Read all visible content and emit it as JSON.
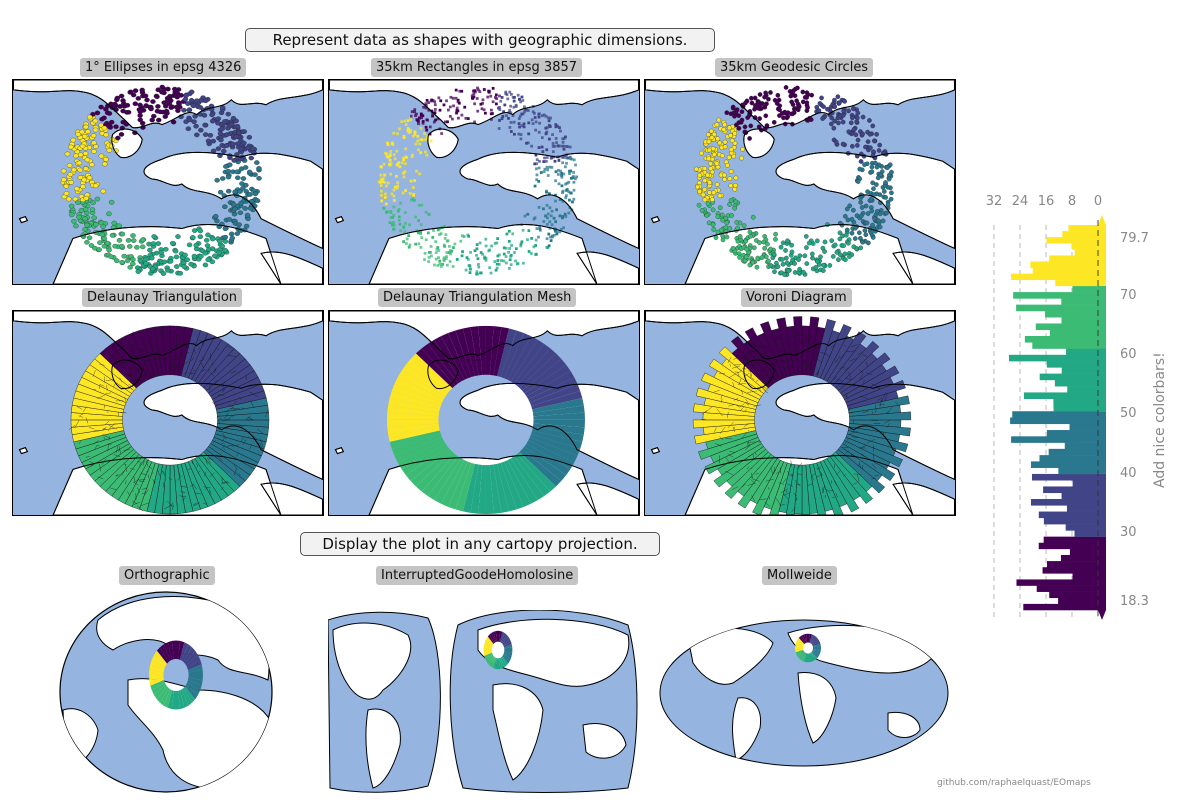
{
  "titles": {
    "main": "Represent data as shapes with geographic dimensions.",
    "projections": "Display the plot in any cartopy projection."
  },
  "panels": [
    {
      "title": "1° Ellipses in epsg 4326",
      "kind": "ellipses"
    },
    {
      "title": "35km Rectangles in epsg 3857",
      "kind": "rectangles"
    },
    {
      "title": "35km Geodesic Circles",
      "kind": "circles"
    },
    {
      "title": "Delaunay Triangulation",
      "kind": "delaunay"
    },
    {
      "title": "Delaunay Triangulation Mesh",
      "kind": "mesh"
    },
    {
      "title": "Voroni Diagram",
      "kind": "voronoi"
    }
  ],
  "projections": [
    {
      "title": "Orthographic"
    },
    {
      "title": "InterruptedGoodeHomolosine"
    },
    {
      "title": "Mollweide"
    }
  ],
  "colorbar": {
    "label": "Add nice colorbars!",
    "histogram_ticks": [
      "32",
      "24",
      "16",
      "8",
      "0"
    ],
    "value_ticks": [
      "79.7",
      "70",
      "60",
      "50",
      "40",
      "30",
      "18.3"
    ],
    "vmin": 18.3,
    "vmax": 79.7,
    "bins": [
      {
        "lo": 30,
        "hi": 70,
        "note": "boundaries"
      }
    ],
    "colors": [
      "#440154",
      "#414487",
      "#2a788e",
      "#22a884",
      "#3cbb75",
      "#fde725"
    ]
  },
  "credit": "github.com/raphaelquast/EOmaps",
  "colors": {
    "ocean": "#95b4df",
    "land": "#ffffff",
    "title_box": "#c4c4c4"
  }
}
